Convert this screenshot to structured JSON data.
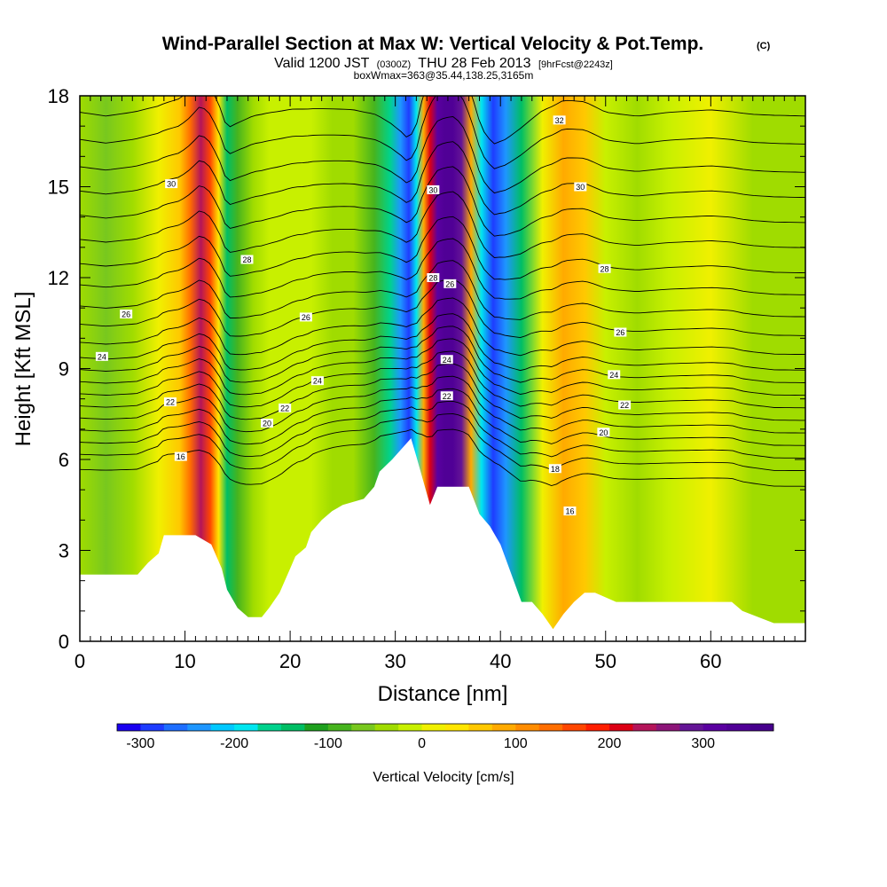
{
  "header": {
    "title": "Wind-Parallel Section at Max W: Vertical Velocity & Pot.Temp.",
    "copyright": "(C)",
    "valid_prefix": "Valid 1200 JST",
    "valid_zulu": "(0300Z)",
    "valid_date": "THU 28 Feb 2013",
    "forecast_tag": "[9hrFcst@2243z]",
    "box_info": "boxWmax=363@35.44,138.25,3165m"
  },
  "chart_data": {
    "type": "heatmap",
    "xlabel": "Distance [nm]",
    "ylabel": "Height [Kft MSL]",
    "xlim": [
      0,
      69
    ],
    "ylim": [
      0,
      18
    ],
    "x_ticks": [
      0,
      10,
      20,
      30,
      40,
      50,
      60
    ],
    "y_ticks": [
      0,
      3,
      6,
      9,
      12,
      15,
      18
    ],
    "grid": false,
    "colorbar": {
      "label": "Vertical Velocity [cm/s]",
      "tick_values": [
        -300,
        -200,
        -100,
        0,
        100,
        200,
        300
      ],
      "tick_labels": [
        "-300",
        "-200",
        "-100",
        "0",
        "100",
        "200",
        "300"
      ],
      "range": [
        -325,
        375
      ],
      "step": 25,
      "colors": [
        "#1a00f0",
        "#1e3cff",
        "#1e6eff",
        "#1e96ff",
        "#00c8ff",
        "#00e6f0",
        "#00d28c",
        "#00be64",
        "#1ea01e",
        "#46b41e",
        "#78c81e",
        "#a0dc00",
        "#c8f000",
        "#f0f000",
        "#ffe600",
        "#ffc800",
        "#ffaa00",
        "#ff8c00",
        "#ff6e00",
        "#ff4600",
        "#ff1e00",
        "#dc0014",
        "#b4145a",
        "#8c1478",
        "#641496",
        "#5a00a0",
        "#500096",
        "#46008c"
      ]
    },
    "terrain_profile": {
      "x": [
        0,
        5.5,
        6.5,
        7.5,
        8,
        11,
        12.5,
        13.5,
        14,
        15,
        16,
        17.3,
        18,
        19,
        20,
        20.5,
        21.5,
        22,
        23,
        24,
        25,
        27,
        28,
        28.5,
        29.7,
        31.5,
        32,
        33.3,
        34,
        36,
        37,
        38,
        39,
        40,
        42,
        43,
        44,
        45,
        46,
        47,
        48,
        49,
        51,
        52,
        62,
        63,
        66,
        69
      ],
      "y": [
        2.2,
        2.2,
        2.6,
        2.9,
        3.5,
        3.5,
        3.2,
        2.4,
        1.7,
        1.1,
        0.8,
        0.8,
        1.1,
        1.6,
        2.4,
        2.8,
        3.1,
        3.6,
        4.0,
        4.3,
        4.5,
        4.7,
        5.1,
        5.6,
        6.0,
        6.7,
        6.1,
        4.5,
        5.1,
        5.1,
        5.1,
        4.2,
        3.8,
        3.2,
        1.3,
        1.3,
        0.9,
        0.4,
        0.9,
        1.3,
        1.6,
        1.6,
        1.3,
        1.3,
        1.3,
        1.0,
        0.6,
        0.6
      ]
    },
    "vertical_velocity_columns": {
      "x_nm": [
        0,
        2.5,
        5,
        7.5,
        9.5,
        10.5,
        11.5,
        12.4,
        13.2,
        14,
        15,
        16.5,
        18,
        20,
        22,
        24,
        26,
        28,
        29.5,
        30.5,
        31.3,
        32,
        32.7,
        33.3,
        34,
        34.7,
        35.5,
        36.3,
        37.2,
        38.2,
        39.3,
        40.5,
        42,
        44,
        46,
        48,
        50,
        53,
        56,
        60,
        64,
        69
      ],
      "w_cm_s": [
        -30,
        -60,
        -30,
        10,
        60,
        130,
        230,
        160,
        30,
        -150,
        -100,
        -40,
        -20,
        -10,
        -20,
        -30,
        -40,
        -80,
        -160,
        -230,
        -300,
        -180,
        80,
        220,
        300,
        330,
        340,
        280,
        90,
        -180,
        -300,
        -250,
        -140,
        0,
        80,
        60,
        -20,
        -50,
        -20,
        0,
        -30,
        -40
      ]
    },
    "isentropes": {
      "levels_kft": [
        5.8,
        6.3,
        6.7,
        7.1,
        7.5,
        7.9,
        8.3,
        8.7,
        9.1,
        9.5,
        10.0,
        10.6,
        11.2,
        11.9,
        12.6,
        13.4,
        14.2,
        15.0,
        15.8,
        16.7,
        17.6
      ]
    },
    "isentrope_labels": [
      {
        "text": "16",
        "x": 9.6,
        "y": 6.1
      },
      {
        "text": "20",
        "x": 17.8,
        "y": 7.2
      },
      {
        "text": "22",
        "x": 19.5,
        "y": 7.7
      },
      {
        "text": "24",
        "x": 22.6,
        "y": 8.6
      },
      {
        "text": "26",
        "x": 21.5,
        "y": 10.7
      },
      {
        "text": "28",
        "x": 15.9,
        "y": 12.6
      },
      {
        "text": "30",
        "x": 8.7,
        "y": 15.1
      },
      {
        "text": "26",
        "x": 4.4,
        "y": 10.8
      },
      {
        "text": "24",
        "x": 2.1,
        "y": 9.4
      },
      {
        "text": "22",
        "x": 8.6,
        "y": 7.9
      },
      {
        "text": "30",
        "x": 33.6,
        "y": 14.9
      },
      {
        "text": "28",
        "x": 33.6,
        "y": 12.0
      },
      {
        "text": "26",
        "x": 35.2,
        "y": 11.8
      },
      {
        "text": "24",
        "x": 34.9,
        "y": 9.3
      },
      {
        "text": "22",
        "x": 34.9,
        "y": 8.1
      },
      {
        "text": "32",
        "x": 45.6,
        "y": 17.2
      },
      {
        "text": "30",
        "x": 47.6,
        "y": 15.0
      },
      {
        "text": "28",
        "x": 49.9,
        "y": 12.3
      },
      {
        "text": "26",
        "x": 51.4,
        "y": 10.2
      },
      {
        "text": "24",
        "x": 50.8,
        "y": 8.8
      },
      {
        "text": "22",
        "x": 51.8,
        "y": 7.8
      },
      {
        "text": "20",
        "x": 49.8,
        "y": 6.9
      },
      {
        "text": "18",
        "x": 45.2,
        "y": 5.7
      },
      {
        "text": "16",
        "x": 46.6,
        "y": 4.3
      }
    ]
  }
}
